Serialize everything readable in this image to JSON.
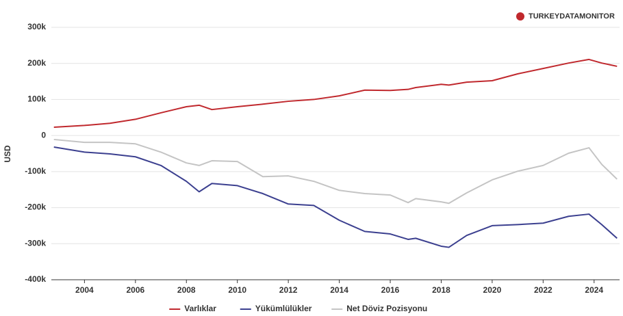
{
  "chart_data": {
    "type": "line",
    "brand": "TURKEYDATAMONITOR",
    "ylabel": "USD",
    "x": [
      2002.8,
      2004,
      2005,
      2006,
      2007,
      2008,
      2008.5,
      2009,
      2010,
      2011,
      2012,
      2013,
      2014,
      2015,
      2016,
      2016.7,
      2017,
      2018,
      2018.3,
      2019,
      2020,
      2021,
      2022,
      2023,
      2023.8,
      2024.3,
      2024.9
    ],
    "series": [
      {
        "name": "Varlıklar",
        "color": "#c0282d",
        "values": [
          23000,
          28000,
          34000,
          45000,
          63000,
          80000,
          84000,
          72000,
          80000,
          87000,
          95000,
          100000,
          110000,
          126000,
          125000,
          128000,
          133000,
          142000,
          140000,
          148000,
          152000,
          171000,
          186000,
          201000,
          211000,
          201000,
          192000
        ]
      },
      {
        "name": "Yükümlülükler",
        "color": "#3b3f8f",
        "values": [
          -32000,
          -46000,
          -51000,
          -59000,
          -83000,
          -127000,
          -156000,
          -133000,
          -139000,
          -161000,
          -190000,
          -194000,
          -235000,
          -266000,
          -273000,
          -288000,
          -285000,
          -307000,
          -310000,
          -277000,
          -250000,
          -247000,
          -243000,
          -224000,
          -218000,
          -247000,
          -285000
        ]
      },
      {
        "name": "Net Döviz Pozisyonu",
        "color": "#c4c4c4",
        "values": [
          -11000,
          -19000,
          -19000,
          -23000,
          -46000,
          -76000,
          -83000,
          -70000,
          -72000,
          -114000,
          -112000,
          -127000,
          -152000,
          -161000,
          -165000,
          -186000,
          -175000,
          -184000,
          -188000,
          -159000,
          -123000,
          -99000,
          -83000,
          -49000,
          -34000,
          -80000,
          -121000
        ]
      }
    ],
    "xlim": [
      2002.7,
      2025
    ],
    "xticks": [
      2004,
      2006,
      2008,
      2010,
      2012,
      2014,
      2016,
      2018,
      2020,
      2022,
      2024
    ],
    "ylim": [
      -400000,
      300000
    ],
    "yticks": [
      {
        "value": -400000,
        "label": "-400k"
      },
      {
        "value": -300000,
        "label": "-300k"
      },
      {
        "value": -200000,
        "label": "-200k"
      },
      {
        "value": -100000,
        "label": "-100k"
      },
      0,
      {
        "value": 100000,
        "label": "100k"
      },
      {
        "value": 200000,
        "label": "200k"
      },
      {
        "value": 300000,
        "label": "300k"
      }
    ],
    "grid": true,
    "legend": "bottom"
  }
}
